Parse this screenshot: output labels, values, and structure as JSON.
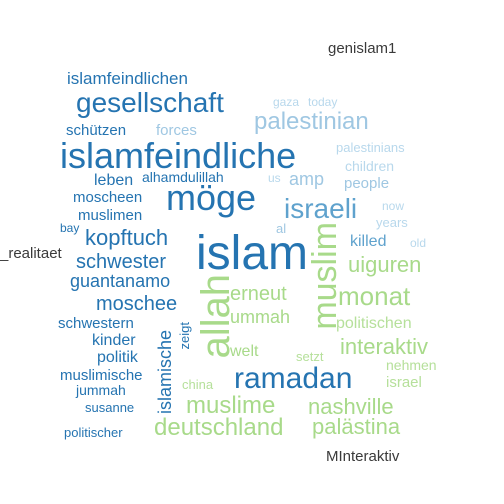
{
  "words": {
    "genislam1": "genislam1",
    "islamfeindlichen": "islamfeindlichen",
    "gesellschaft": "gesellschaft",
    "gaza": "gaza",
    "today": "today",
    "palestinian": "palestinian",
    "schutzen": "schützen",
    "forces": "forces",
    "islamfeindliche": "islamfeindliche",
    "palestinians": "palestinians",
    "children": "children",
    "alhamdulillah": "alhamdulillah",
    "us": "us",
    "amp": "amp",
    "people": "people",
    "leben": "leben",
    "moege": "möge",
    "moscheen": "moscheen",
    "israeli": "israeli",
    "now": "now",
    "muslimen": "muslimen",
    "years": "years",
    "bay": "bay",
    "al": "al",
    "kopftuch": "kopftuch",
    "killed": "killed",
    "old": "old",
    "realitaet": "_realitaet",
    "islam": "islam",
    "muslim": "muslim",
    "schwester": "schwester",
    "uiguren": "uiguren",
    "guantanamo": "guantanamo",
    "allah": "allah",
    "erneut": "erneut",
    "monat": "monat",
    "moschee": "moschee",
    "ummah": "ummah",
    "schwestern": "schwestern",
    "zeigt": "zeigt",
    "politischen": "politischen",
    "kinder": "kinder",
    "islamische": "islamische",
    "interaktiv": "interaktiv",
    "politik": "politik",
    "welt": "welt",
    "setzt": "setzt",
    "nehmen": "nehmen",
    "muslimische": "muslimische",
    "ramadan": "ramadan",
    "jummah": "jummah",
    "china": "china",
    "israel": "israel",
    "susanne": "susanne",
    "muslime": "muslime",
    "nashville": "nashville",
    "deutschland": "deutschland",
    "palaestina": "palästina",
    "politischer": "politischer",
    "minteraktiv": "MInteraktiv"
  },
  "colors": {
    "dark": "#3a3a3a",
    "blue_strong": "#2574b1",
    "blue_medium": "#5fa2cd",
    "blue_light": "#9fc7e2",
    "blue_pale": "#b8d8ec",
    "green": "#a8da8a",
    "green_light": "#b6e09b"
  }
}
